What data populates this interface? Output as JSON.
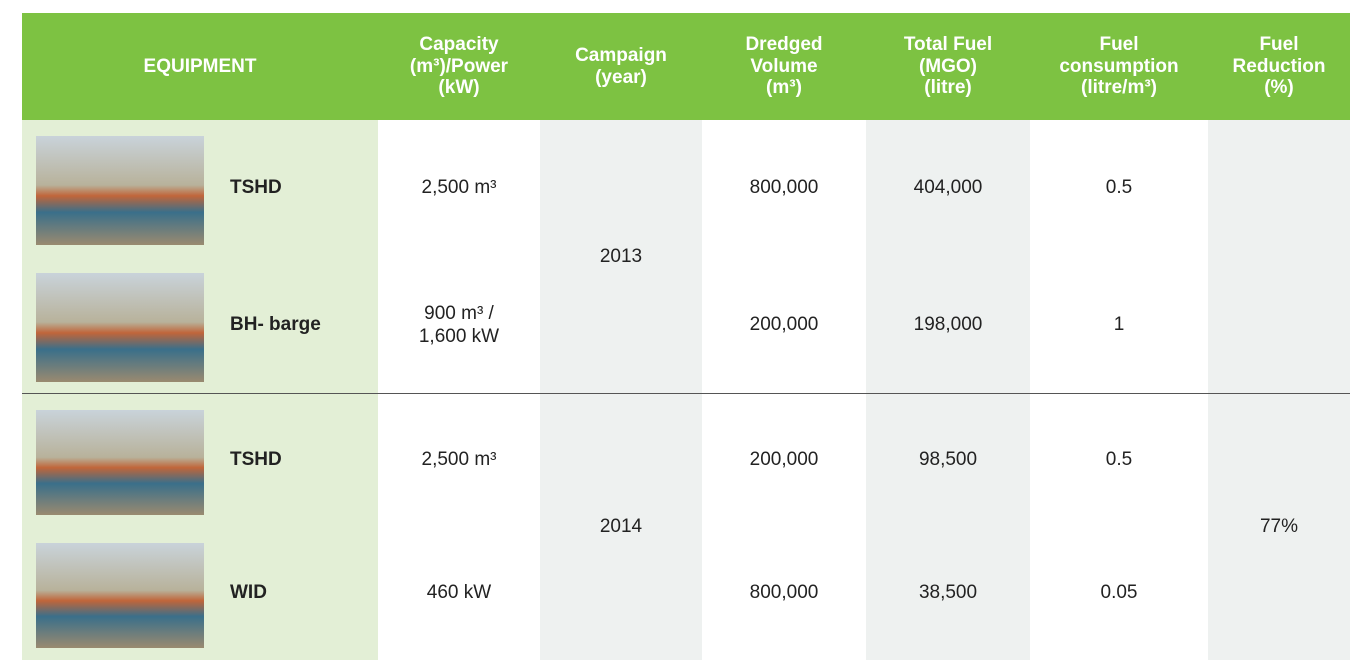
{
  "table": {
    "header": [
      "EQUIPMENT",
      "Capacity\n(m³)/Power\n(kW)",
      "Campaign\n(year)",
      "Dredged\nVolume\n(m³)",
      "Total Fuel\n(MGO)\n(litre)",
      "Fuel\nconsumption\n(litre/m³)",
      "Fuel\nReduction\n(%)"
    ],
    "groups": [
      {
        "campaign": "2013",
        "rows": [
          {
            "equipment": "TSHD",
            "capacity": "2,500 m³",
            "dredged": "800,000",
            "fuel": "404,000",
            "consumption": "0.5"
          },
          {
            "equipment": "BH- barge",
            "capacity": "900 m³ /\n1,600 kW",
            "dredged": "200,000",
            "fuel": "198,000",
            "consumption": "1"
          }
        ]
      },
      {
        "campaign": "2014",
        "reduction": "77%",
        "rows": [
          {
            "equipment": "TSHD",
            "capacity": "2,500 m³",
            "dredged": "200,000",
            "fuel": "98,500",
            "consumption": "0.5"
          },
          {
            "equipment": "WID",
            "capacity": "460 kW",
            "dredged": "800,000",
            "fuel": "38,500",
            "consumption": "0.05"
          }
        ]
      }
    ]
  }
}
